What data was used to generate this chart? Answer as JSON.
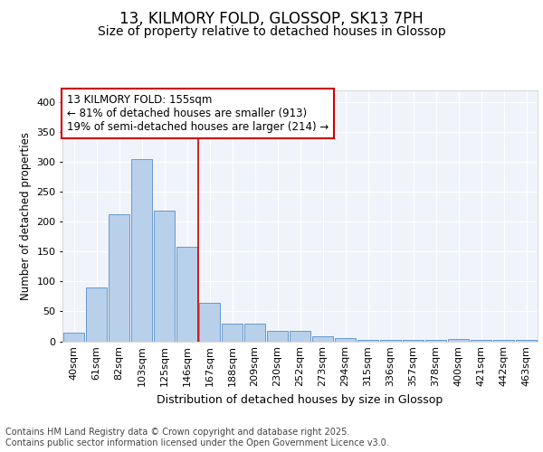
{
  "title": "13, KILMORY FOLD, GLOSSOP, SK13 7PH",
  "subtitle": "Size of property relative to detached houses in Glossop",
  "xlabel": "Distribution of detached houses by size in Glossop",
  "ylabel": "Number of detached properties",
  "bar_labels": [
    "40sqm",
    "61sqm",
    "82sqm",
    "103sqm",
    "125sqm",
    "146sqm",
    "167sqm",
    "188sqm",
    "209sqm",
    "230sqm",
    "252sqm",
    "273sqm",
    "294sqm",
    "315sqm",
    "336sqm",
    "357sqm",
    "378sqm",
    "400sqm",
    "421sqm",
    "442sqm",
    "463sqm"
  ],
  "bar_values": [
    14,
    90,
    212,
    305,
    218,
    158,
    65,
    30,
    30,
    17,
    17,
    8,
    5,
    2,
    3,
    3,
    3,
    4,
    3,
    3,
    2
  ],
  "bar_color": "#b8d0ea",
  "bar_edgecolor": "#6699cc",
  "property_line_x": 5.5,
  "annotation_text": "13 KILMORY FOLD: 155sqm\n← 81% of detached houses are smaller (913)\n19% of semi-detached houses are larger (214) →",
  "annotation_box_color": "#ffffff",
  "annotation_box_edgecolor": "#cc0000",
  "vline_color": "#cc0000",
  "ylim": [
    0,
    420
  ],
  "yticks": [
    0,
    50,
    100,
    150,
    200,
    250,
    300,
    350,
    400
  ],
  "bg_color": "#ffffff",
  "plot_bg_color": "#f0f4fa",
  "grid_color": "#ffffff",
  "footer_text": "Contains HM Land Registry data © Crown copyright and database right 2025.\nContains public sector information licensed under the Open Government Licence v3.0.",
  "title_fontsize": 12,
  "subtitle_fontsize": 10,
  "xlabel_fontsize": 9,
  "ylabel_fontsize": 8.5,
  "tick_fontsize": 8,
  "annotation_fontsize": 8.5,
  "footer_fontsize": 7
}
